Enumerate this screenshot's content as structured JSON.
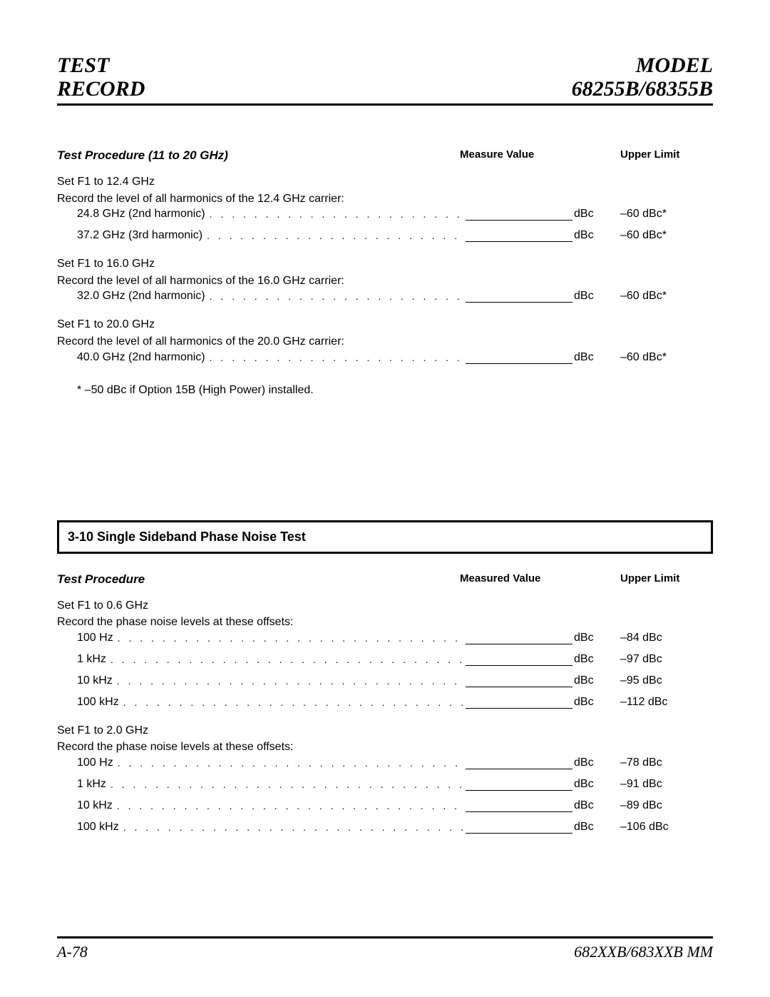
{
  "header": {
    "left_line1": "TEST",
    "left_line2": "RECORD",
    "right_line1": "MODEL",
    "right_line2": "68255B/68355B"
  },
  "section1": {
    "title": "Test Procedure (11 to 20 GHz)",
    "col_measure": "Measure Value",
    "col_limit": "Upper Limit",
    "unit": "dBc",
    "groups": [
      {
        "instr1": "Set F1 to 12.4 GHz",
        "instr2": "Record the level of all harmonics of the 12.4 GHz carrier:",
        "rows": [
          {
            "label": "24.8 GHz (2nd harmonic)",
            "limit": "–60 dBc*"
          },
          {
            "label": "37.2 GHz (3rd harmonic)",
            "limit": "–60 dBc*"
          }
        ]
      },
      {
        "instr1": "Set F1 to 16.0 GHz",
        "instr2": "Record the level of all harmonics of the 16.0 GHz carrier:",
        "rows": [
          {
            "label": "32.0 GHz (2nd harmonic)",
            "limit": "–60 dBc*"
          }
        ]
      },
      {
        "instr1": "Set F1 to 20.0 GHz",
        "instr2": "Record the level of all harmonics of the 20.0 GHz carrier:",
        "rows": [
          {
            "label": "40.0 GHz (2nd harmonic)",
            "limit": "–60 dBc*"
          }
        ]
      }
    ],
    "footnote": "* –50 dBc if Option 15B (High Power) installed."
  },
  "section2": {
    "box_title": "3-10 Single Sideband Phase Noise Test",
    "title": "Test Procedure",
    "col_measure": "Measured Value",
    "col_limit": "Upper Limit",
    "unit": "dBc",
    "groups": [
      {
        "instr1": "Set F1 to 0.6 GHz",
        "instr2": "Record the phase noise levels at these offsets:",
        "rows": [
          {
            "label": "100 Hz",
            "limit": "–84 dBc"
          },
          {
            "label": "1 kHz",
            "limit": "–97 dBc"
          },
          {
            "label": "10 kHz",
            "limit": "–95 dBc"
          },
          {
            "label": "100 kHz",
            "limit": "–112 dBc"
          }
        ]
      },
      {
        "instr1": "Set F1 to 2.0 GHz",
        "instr2": "Record the phase noise levels at these offsets:",
        "rows": [
          {
            "label": "100 Hz",
            "limit": "–78 dBc"
          },
          {
            "label": "1 kHz",
            "limit": "–91 dBc"
          },
          {
            "label": "10 kHz",
            "limit": "–89 dBc"
          },
          {
            "label": "100 kHz",
            "limit": "–106 dBc"
          }
        ]
      }
    ]
  },
  "footer": {
    "left": "A-78",
    "right": "682XXB/683XXB MM"
  },
  "style": {
    "text_color": "#000000",
    "bg_color": "#ffffff",
    "rule_color": "#000000"
  }
}
